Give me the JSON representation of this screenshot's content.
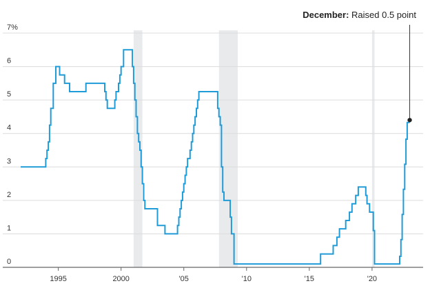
{
  "chart_data": {
    "type": "line",
    "title": "",
    "xlabel": "",
    "ylabel": "",
    "ylim": [
      0,
      7
    ],
    "xlim": [
      1992.0,
      2023.3
    ],
    "yticks": [
      {
        "value": 0,
        "label": "0"
      },
      {
        "value": 1,
        "label": "1"
      },
      {
        "value": 2,
        "label": "2"
      },
      {
        "value": 3,
        "label": "3"
      },
      {
        "value": 4,
        "label": "4"
      },
      {
        "value": 5,
        "label": "5"
      },
      {
        "value": 6,
        "label": "6"
      },
      {
        "value": 7,
        "label": "7%"
      }
    ],
    "xticks": [
      {
        "value": 1995,
        "label": "1995"
      },
      {
        "value": 2000,
        "label": "2000"
      },
      {
        "value": 2005,
        "label": "'05"
      },
      {
        "value": 2010,
        "label": "'10"
      },
      {
        "value": 2015,
        "label": "'15"
      },
      {
        "value": 2020,
        "label": "'20"
      }
    ],
    "grid": true,
    "line_color": "#1f9bd7",
    "recession_color": "#e9eaec",
    "recessions": [
      {
        "start": 2001.0,
        "end": 2001.7
      },
      {
        "start": 2007.8,
        "end": 2009.3
      },
      {
        "start": 2020.0,
        "end": 2020.2
      }
    ],
    "series": [
      {
        "x": [
          1992.0,
          1994.0,
          1994.1,
          1994.2,
          1994.3,
          1994.4,
          1994.6,
          1994.8,
          1994.9,
          1995.1,
          1995.5,
          1995.9,
          1996.0,
          1997.2,
          1998.7,
          1998.8,
          1998.9,
          1999.5,
          1999.6,
          1999.8,
          1999.9,
          2000.0,
          2000.2,
          2000.4,
          2000.9,
          2001.0,
          2001.1,
          2001.2,
          2001.3,
          2001.4,
          2001.5,
          2001.6,
          2001.7,
          2001.8,
          2001.9,
          2002.9,
          2003.5,
          2004.5,
          2004.6,
          2004.7,
          2004.8,
          2004.9,
          2005.0,
          2005.1,
          2005.2,
          2005.3,
          2005.5,
          2005.6,
          2005.7,
          2005.8,
          2005.9,
          2006.0,
          2006.1,
          2006.2,
          2006.4,
          2006.5,
          2007.7,
          2007.8,
          2007.9,
          2008.0,
          2008.1,
          2008.2,
          2008.3,
          2008.7,
          2008.8,
          2009.0,
          2015.9,
          2016.9,
          2017.2,
          2017.4,
          2017.9,
          2018.2,
          2018.4,
          2018.7,
          2018.9,
          2019.5,
          2019.6,
          2019.8,
          2020.1,
          2020.2,
          2022.2,
          2022.3,
          2022.4,
          2022.5,
          2022.6,
          2022.7,
          2022.8,
          2022.9,
          2023.0
        ],
        "y": [
          3.0,
          3.25,
          3.5,
          3.75,
          4.25,
          4.75,
          5.5,
          6.0,
          6.0,
          5.75,
          5.5,
          5.25,
          5.25,
          5.5,
          5.25,
          5.0,
          4.75,
          5.0,
          5.25,
          5.5,
          5.75,
          6.0,
          6.5,
          6.5,
          6.0,
          5.5,
          5.0,
          4.5,
          4.0,
          3.75,
          3.5,
          3.0,
          2.5,
          2.0,
          1.75,
          1.25,
          1.0,
          1.25,
          1.5,
          1.75,
          2.0,
          2.25,
          2.5,
          2.75,
          3.0,
          3.25,
          3.5,
          3.75,
          4.0,
          4.25,
          4.5,
          4.75,
          5.0,
          5.25,
          5.25,
          5.25,
          4.75,
          4.5,
          4.25,
          3.0,
          2.25,
          2.0,
          2.0,
          1.5,
          1.0,
          0.1,
          0.4,
          0.65,
          0.9,
          1.15,
          1.4,
          1.65,
          1.9,
          2.15,
          2.4,
          2.15,
          1.9,
          1.65,
          1.1,
          0.1,
          0.33,
          0.83,
          1.58,
          2.33,
          3.08,
          3.83,
          4.33,
          4.33,
          4.33
        ]
      }
    ],
    "annotation": {
      "bold": "December:",
      "text": " Raised 0.5 point",
      "x": 2023.0,
      "y": 4.4
    }
  }
}
